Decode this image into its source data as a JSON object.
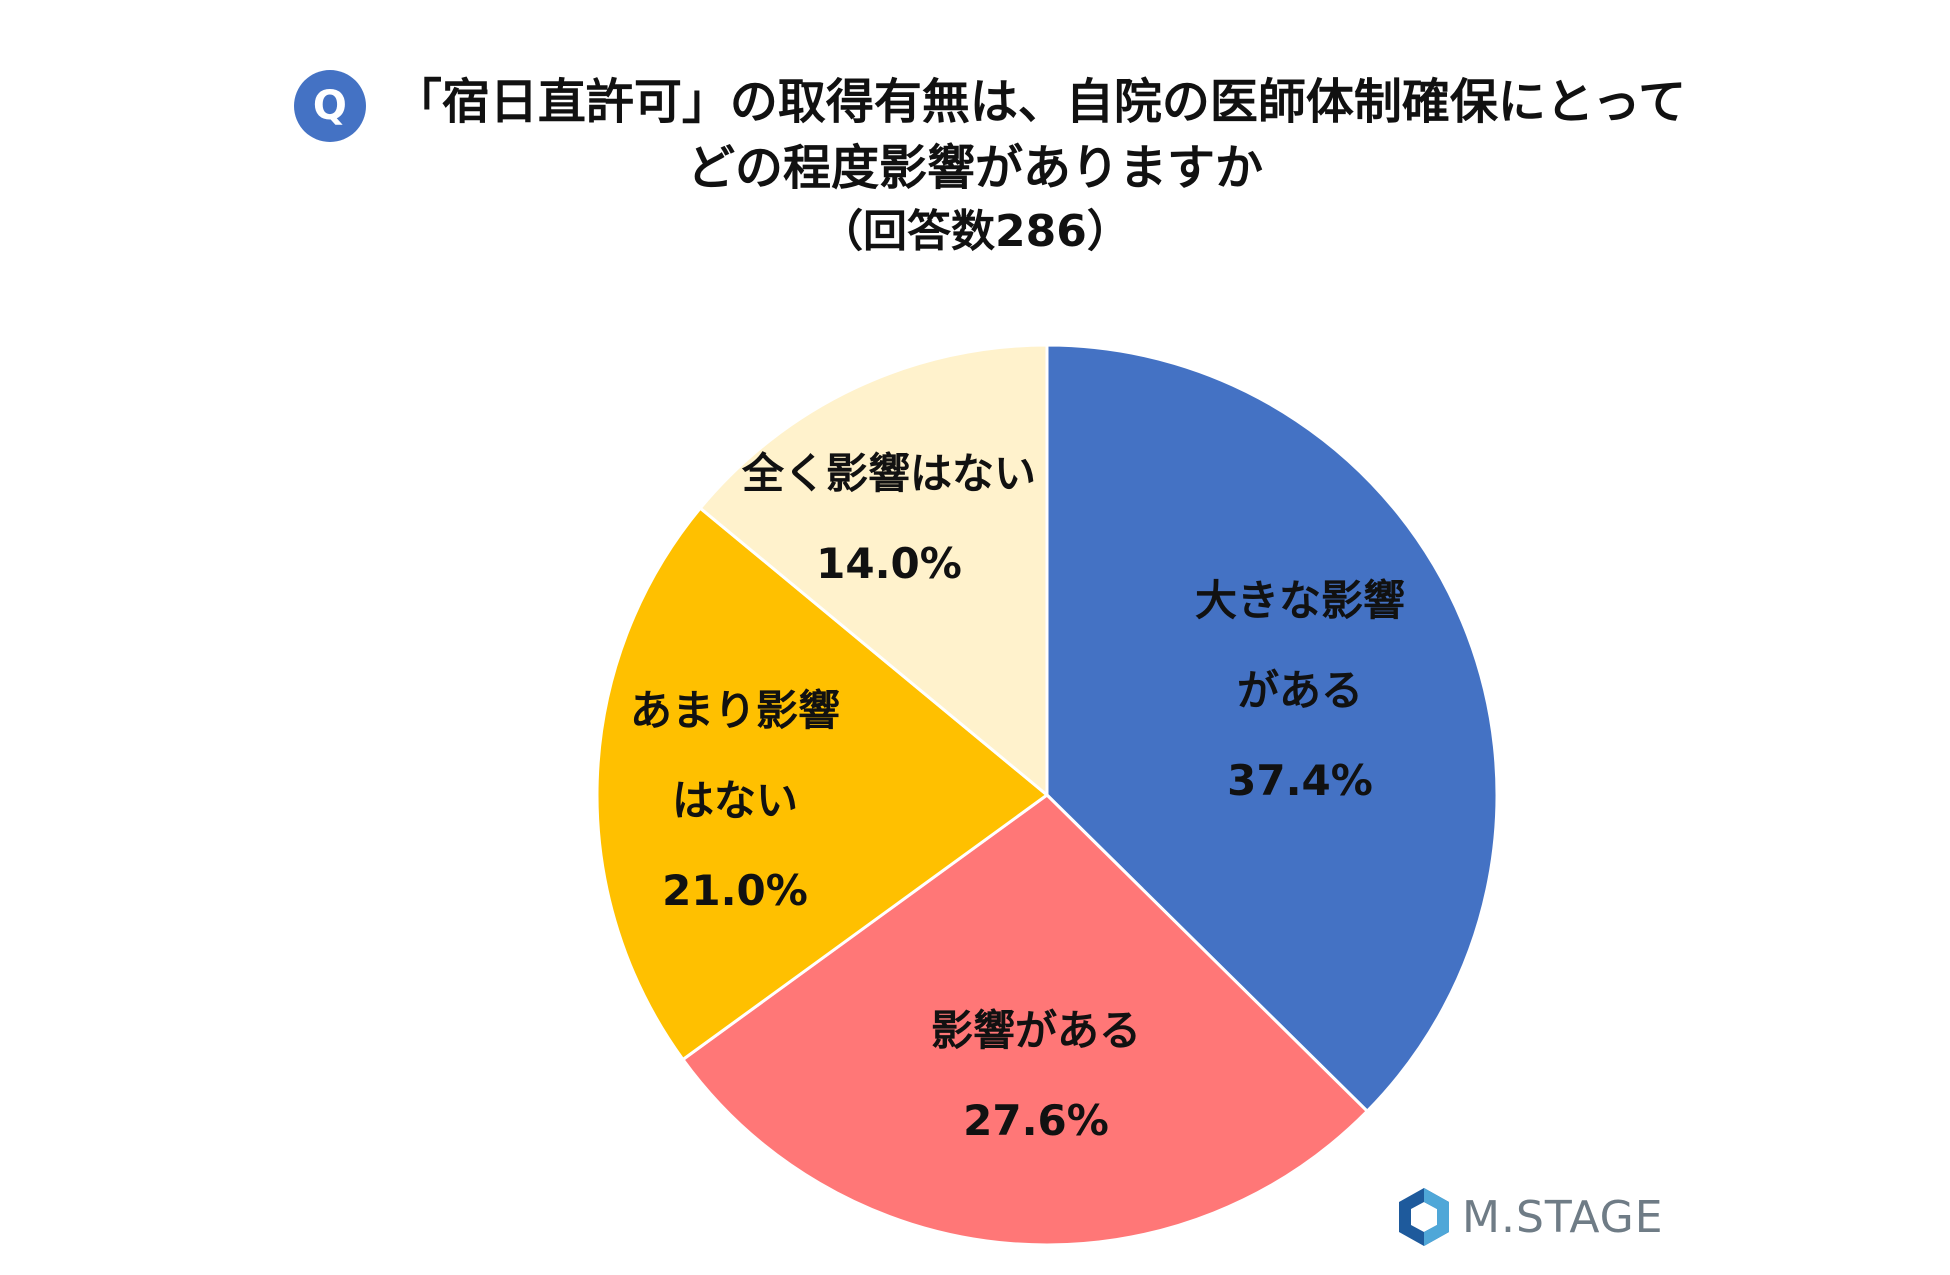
{
  "title": {
    "badge": "Q",
    "line1": "「宿日直許可」の取得有無は、自院の医師体制確保にとって",
    "line2": "どの程度影響がありますか",
    "line3": "（回答数286）"
  },
  "chart_data": {
    "type": "pie",
    "start_angle_deg": 0,
    "direction": "clockwise",
    "slices": [
      {
        "label_lines": [
          "大きな影響",
          "がある"
        ],
        "value": 37.4,
        "value_label": "37.4%",
        "color": "#4472C4"
      },
      {
        "label_lines": [
          "影響がある"
        ],
        "value": 27.6,
        "value_label": "27.6%",
        "color": "#FF7777"
      },
      {
        "label_lines": [
          "あまり影響",
          "はない"
        ],
        "value": 21.0,
        "value_label": "21.0%",
        "color": "#FFC000"
      },
      {
        "label_lines": [
          "全く影響はない"
        ],
        "value": 14.0,
        "value_label": "14.0%",
        "color": "#FFF2CC"
      }
    ]
  },
  "logo": {
    "text": "M.STAGE",
    "mark_colors": [
      "#1e5a9c",
      "#4fa7d8"
    ]
  }
}
